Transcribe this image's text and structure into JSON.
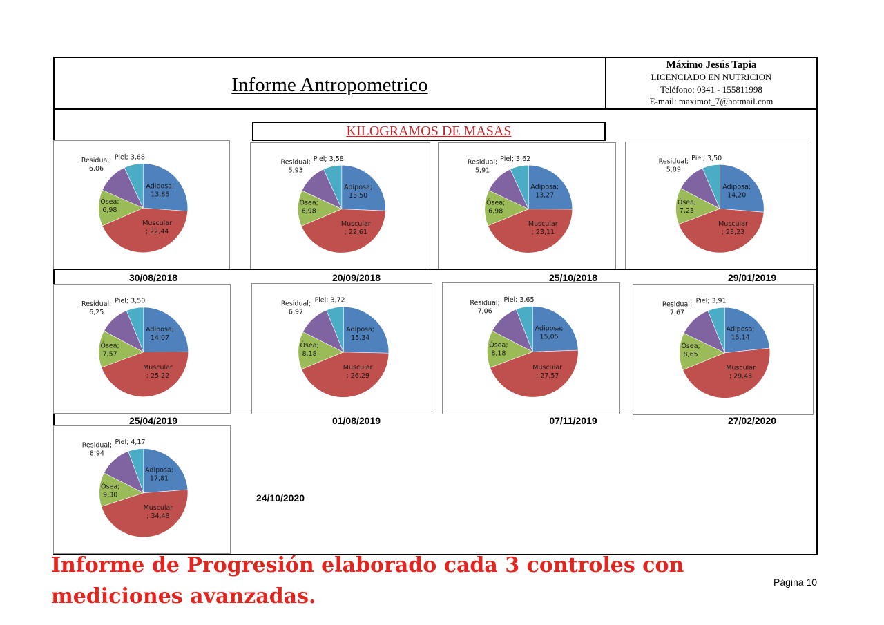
{
  "header": {
    "title": "Informe Antropometrico",
    "contact": {
      "name": "Máximo Jesús Tapia",
      "role": "LICENCIADO EN NUTRICION",
      "phone": "Teléfono: 0341 - 155811998",
      "email": "E-mail: maximot_7@hotmail.com"
    }
  },
  "section_title": "KILOGRAMOS DE MASAS",
  "colors": {
    "Adiposa": "#4f81bd",
    "Muscular": "#c0504d",
    "Ósea": "#9bbb59",
    "Residual": "#8064a2",
    "Piel": "#4bacc6",
    "title_red": "#c0272d",
    "footer_red": "#e2261f"
  },
  "chart_data": [
    {
      "type": "pie",
      "date": "30/08/2018",
      "labels": [
        "Adiposa",
        "Muscular",
        "Ósea",
        "Residual",
        "Piel"
      ],
      "values": [
        13.85,
        22.44,
        6.98,
        6.06,
        3.68
      ],
      "value_texts": [
        "13,85",
        "22,44",
        "6,98",
        "6,06",
        "3,68"
      ]
    },
    {
      "type": "pie",
      "date": "20/09/2018",
      "labels": [
        "Adiposa",
        "Muscular",
        "Ósea",
        "Residual",
        "Piel"
      ],
      "values": [
        13.5,
        22.61,
        6.98,
        5.93,
        3.58
      ],
      "value_texts": [
        "13,50",
        "22,61",
        "6,98",
        "5,93",
        "3,58"
      ]
    },
    {
      "type": "pie",
      "date": "25/10/2018",
      "labels": [
        "Adiposa",
        "Muscular",
        "Ósea",
        "Residual",
        "Piel"
      ],
      "values": [
        13.27,
        23.11,
        6.98,
        5.91,
        3.62
      ],
      "value_texts": [
        "13,27",
        "23,11",
        "6,98",
        "5,91",
        "3,62"
      ]
    },
    {
      "type": "pie",
      "date": "29/01/2019",
      "labels": [
        "Adiposa",
        "Muscular",
        "Ósea",
        "Residual",
        "Piel"
      ],
      "values": [
        14.2,
        23.23,
        7.23,
        5.89,
        3.5
      ],
      "value_texts": [
        "14,20",
        "23,23",
        "7,23",
        "5,89",
        "3,50"
      ]
    },
    {
      "type": "pie",
      "date": "25/04/2019",
      "labels": [
        "Adiposa",
        "Muscular",
        "Ósea",
        "Residual",
        "Piel"
      ],
      "values": [
        14.07,
        25.22,
        7.57,
        6.25,
        3.5
      ],
      "value_texts": [
        "14,07",
        "25,22",
        "7,57",
        "6,25",
        "3,50"
      ]
    },
    {
      "type": "pie",
      "date": "01/08/2019",
      "labels": [
        "Adiposa",
        "Muscular",
        "Ósea",
        "Residual",
        "Piel"
      ],
      "values": [
        15.34,
        26.29,
        8.18,
        6.97,
        3.72
      ],
      "value_texts": [
        "15,34",
        "26,29",
        "8,18",
        "6,97",
        "3,72"
      ]
    },
    {
      "type": "pie",
      "date": "07/11/2019",
      "labels": [
        "Adiposa",
        "Muscular",
        "Ósea",
        "Residual",
        "Piel"
      ],
      "values": [
        15.05,
        27.57,
        8.18,
        7.06,
        3.65
      ],
      "value_texts": [
        "15,05",
        "27,57",
        "8,18",
        "7,06",
        "3,65"
      ]
    },
    {
      "type": "pie",
      "date": "27/02/2020",
      "labels": [
        "Adiposa",
        "Muscular",
        "Ósea",
        "Residual",
        "Piel"
      ],
      "values": [
        15.14,
        29.43,
        8.65,
        7.67,
        3.91
      ],
      "value_texts": [
        "15,14",
        "29,43",
        "8,65",
        "7,67",
        "3,91"
      ]
    },
    {
      "type": "pie",
      "date": "24/10/2020",
      "labels": [
        "Adiposa",
        "Muscular",
        "Ósea",
        "Residual",
        "Piel"
      ],
      "values": [
        17.81,
        34.48,
        9.3,
        8.94,
        4.17
      ],
      "value_texts": [
        "17,81",
        "34,48",
        "9,30",
        "8,94",
        "4,17"
      ]
    }
  ],
  "footer": {
    "note": "Informe de Progresión elaborado cada 3 controles con mediciones avanzadas.",
    "page": "Página 10"
  }
}
